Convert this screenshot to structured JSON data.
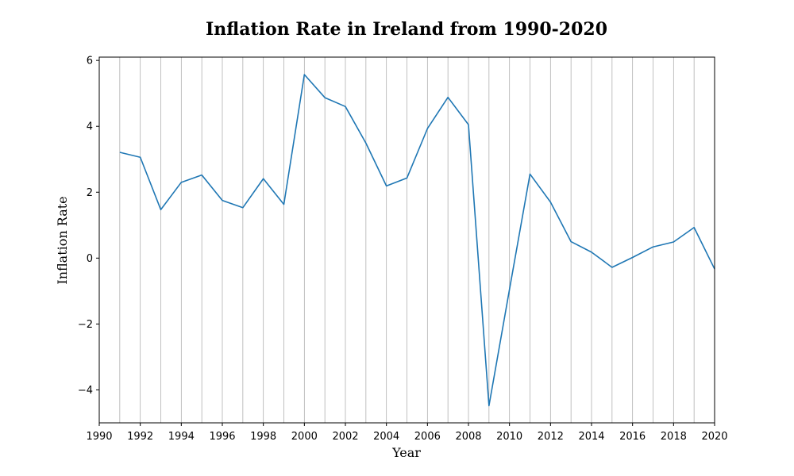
{
  "chart_data": {
    "type": "line",
    "title": "Inflation Rate in Ireland from 1990-2020",
    "xlabel": "Year",
    "ylabel": "Inflation Rate",
    "xlim": [
      1990,
      2020
    ],
    "ylim": [
      -5,
      6.1
    ],
    "x_ticks": [
      1990,
      1992,
      1994,
      1996,
      1998,
      2000,
      2002,
      2004,
      2006,
      2008,
      2010,
      2012,
      2014,
      2016,
      2018,
      2020
    ],
    "y_ticks": [
      -4,
      -2,
      0,
      2,
      4,
      6
    ],
    "y_tick_labels": [
      "−4",
      "−2",
      "0",
      "2",
      "4",
      "6"
    ],
    "grid": "vertical lines at every year",
    "line_color": "#1f77b4",
    "grid_color": "#b0b0b0",
    "series": [
      {
        "x": [
          1991,
          1992,
          1993,
          1994,
          1995,
          1996,
          1997,
          1998,
          1999,
          2000,
          2001,
          2002,
          2003,
          2004,
          2005,
          2006,
          2007,
          2008,
          2009,
          2010,
          2011,
          2012,
          2013,
          2014,
          2015,
          2016,
          2017,
          2018,
          2019,
          2020
        ],
        "values": [
          3.21,
          3.06,
          1.47,
          2.3,
          2.52,
          1.75,
          1.53,
          2.41,
          1.63,
          5.57,
          4.87,
          4.6,
          3.49,
          2.19,
          2.43,
          3.93,
          4.88,
          4.05,
          -4.48,
          -0.95,
          2.55,
          1.7,
          0.5,
          0.18,
          -0.28,
          0.02,
          0.34,
          0.49,
          0.93,
          -0.33
        ]
      }
    ]
  }
}
